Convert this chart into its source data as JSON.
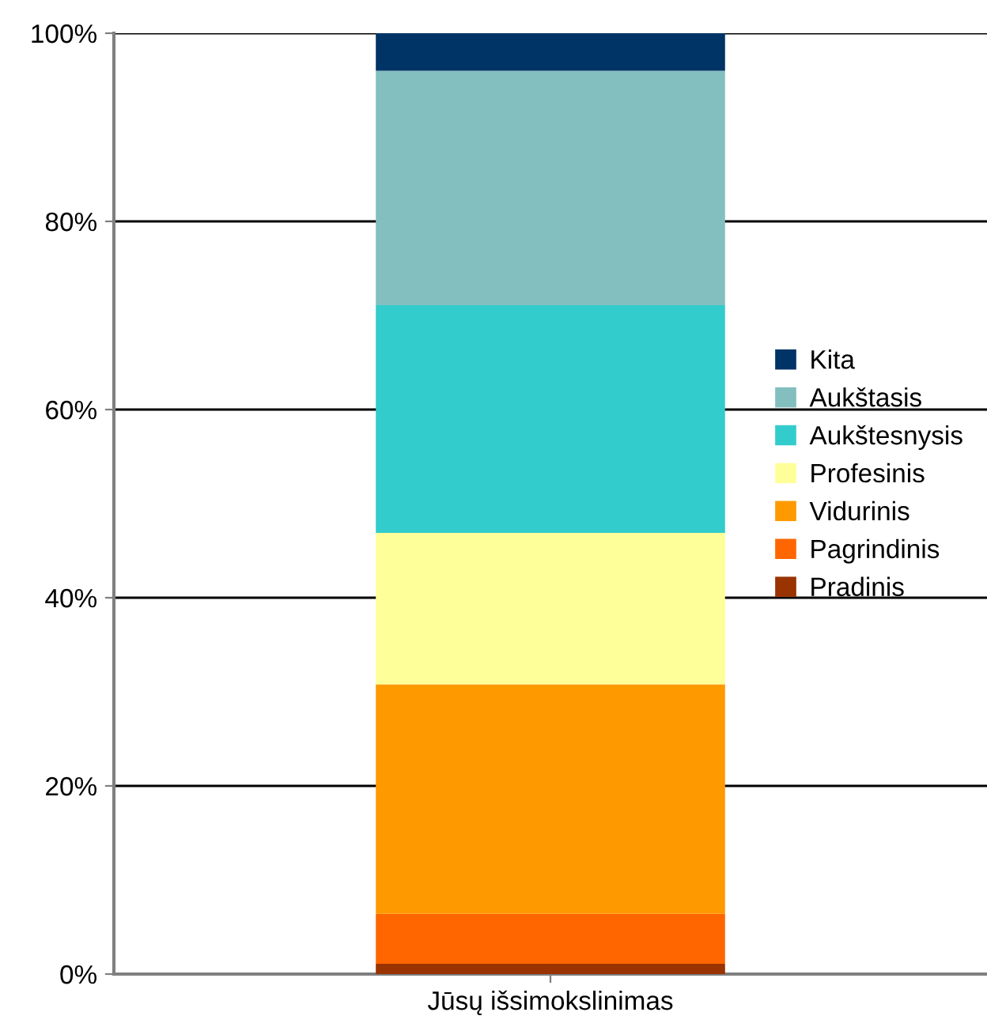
{
  "chart_data": {
    "type": "bar",
    "stacked": true,
    "categories": [
      "Jūsų išsimokslinimas"
    ],
    "series": [
      {
        "name": "Pradinis",
        "color": "#993300",
        "values": [
          1.1
        ]
      },
      {
        "name": "Pagrindinis",
        "color": "#ff6600",
        "values": [
          5.3
        ]
      },
      {
        "name": "Vidurinis",
        "color": "#ff9900",
        "values": [
          24.4
        ]
      },
      {
        "name": "Profesinis",
        "color": "#ffff99",
        "values": [
          16.1
        ]
      },
      {
        "name": "Aukštesnysis",
        "color": "#33cccc",
        "values": [
          24.2
        ]
      },
      {
        "name": "Aukštasis",
        "color": "#83bfbf",
        "values": [
          24.9
        ]
      },
      {
        "name": "Kita",
        "color": "#003366",
        "values": [
          4.0
        ]
      }
    ],
    "ylim": [
      0,
      100
    ],
    "yticks": [
      {
        "value": 0,
        "label": "0%"
      },
      {
        "value": 20,
        "label": "20%"
      },
      {
        "value": 40,
        "label": "40%"
      },
      {
        "value": 60,
        "label": "60%"
      },
      {
        "value": 80,
        "label": "80%"
      },
      {
        "value": 100,
        "label": "100%"
      }
    ],
    "grid": "y",
    "legend": "right"
  }
}
